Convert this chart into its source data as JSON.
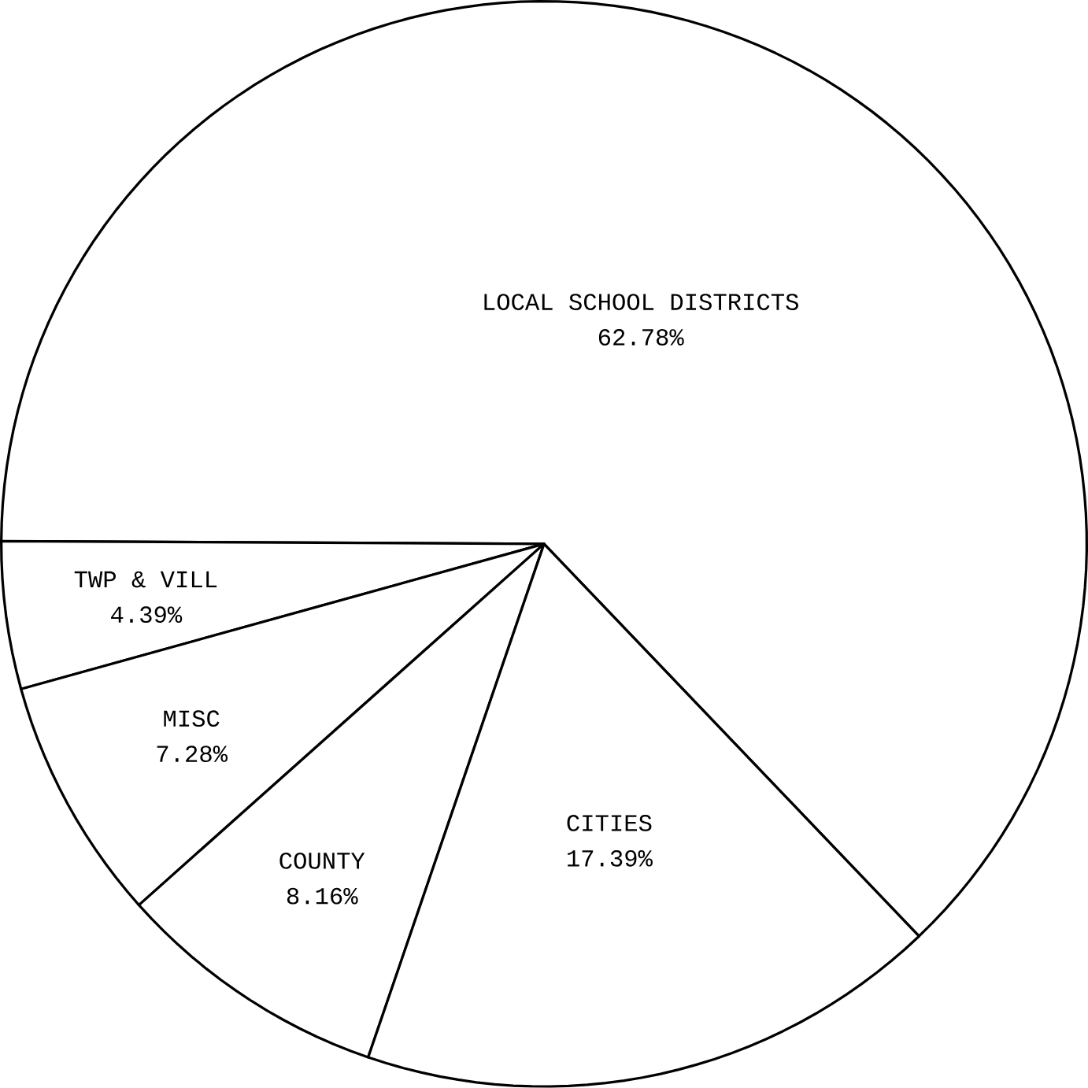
{
  "chart_data": {
    "type": "pie",
    "categories": [
      "LOCAL SCHOOL DISTRICTS",
      "TWP & VILL",
      "MISC",
      "COUNTY",
      "CITIES"
    ],
    "values": [
      62.78,
      4.39,
      7.28,
      8.16,
      17.39
    ],
    "value_labels": [
      "62.78%",
      "4.39%",
      "7.28%",
      "8.16%",
      "17.39%"
    ],
    "colors": [
      "#ffffff",
      "#ffffff",
      "#ffffff",
      "#ffffff",
      "#ffffff"
    ]
  }
}
